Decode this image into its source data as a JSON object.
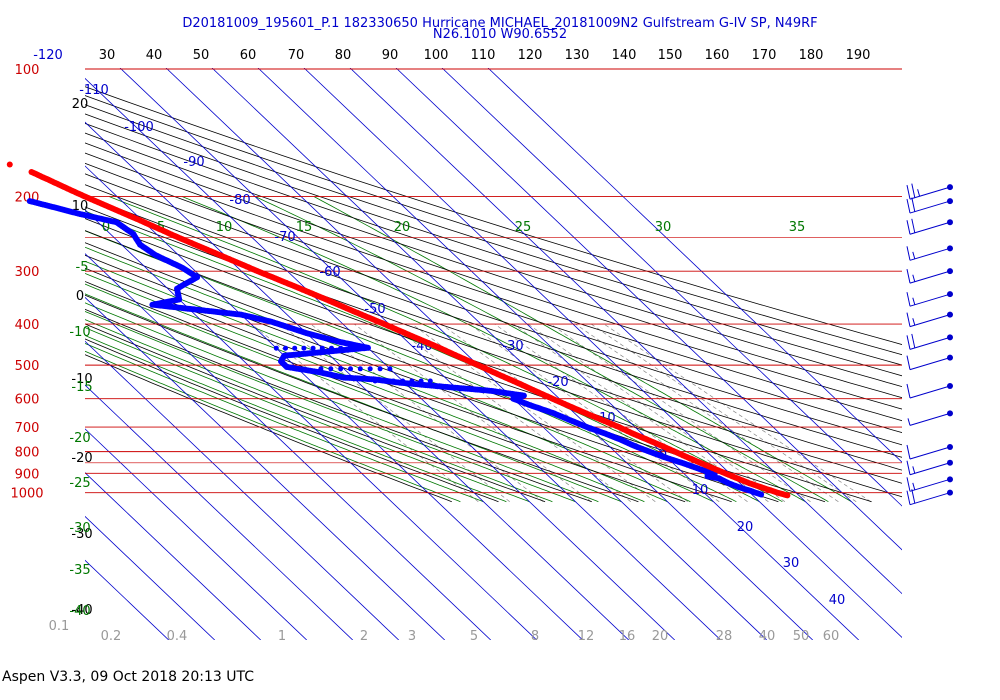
{
  "header": {
    "title_line1": "D20181009_195601_P.1 182330650 Hurricane MICHAEL_20181009N2 Gulfstream G-IV SP, N49RF",
    "title_line2": "N26.1010 W90.6552"
  },
  "footer": {
    "text": "Aspen V3.3, 09 Oct 2018  20:13 UTC"
  },
  "colors": {
    "isobar": "#cc0000",
    "isotherm": "#0000cc",
    "dry_adiabat": "#000000",
    "moist_adiabat": "#007700",
    "mixing_ratio": "#888888",
    "temperature": "#ff0000",
    "dewpoint": "#0000ff",
    "wind": "#0000cc"
  },
  "chart_data": {
    "type": "skew-t log-p",
    "pressure_axis": {
      "unit": "hPa",
      "scale": "log",
      "range": [
        100,
        1050
      ],
      "ticks": [
        "100",
        "200",
        "300",
        "400",
        "500",
        "600",
        "700",
        "800",
        "900",
        "1000"
      ]
    },
    "top_ticks": [
      "-120",
      "30",
      "40",
      "50",
      "60",
      "70",
      "80",
      "90",
      "100",
      "110",
      "120",
      "130",
      "140",
      "150",
      "160",
      "170",
      "180",
      "190"
    ],
    "isotherm_labels": [
      "-110",
      "-100",
      "-90",
      "-80",
      "-70",
      "-60",
      "-50",
      "-40",
      "-30",
      "-20",
      "-10",
      "0",
      "10",
      "20",
      "30",
      "40"
    ],
    "dry_adiabat_labels": [
      "20",
      "10",
      "0",
      "-10",
      "-20",
      "-30",
      "-40"
    ],
    "moist_adiabat_labels": [
      "0",
      "5",
      "10",
      "15",
      "20",
      "25",
      "30",
      "35",
      "-5",
      "-10",
      "-15",
      "-20",
      "-25",
      "-30",
      "-35",
      "-40"
    ],
    "mixing_ratio_labels": [
      "0.1",
      "0.2",
      "0.4",
      "1",
      "2",
      "3",
      "5",
      "8",
      "12",
      "16",
      "20",
      "28",
      "40",
      "50",
      "60"
    ],
    "temperature": {
      "name": "Temperature (°C)",
      "points": [
        {
          "p": 1015,
          "t": 27.5
        },
        {
          "p": 1000,
          "t": 26.0
        },
        {
          "p": 975,
          "t": 24.0
        },
        {
          "p": 950,
          "t": 22.0
        },
        {
          "p": 925,
          "t": 20.5
        },
        {
          "p": 900,
          "t": 19.0
        },
        {
          "p": 875,
          "t": 17.5
        },
        {
          "p": 850,
          "t": 16.0
        },
        {
          "p": 825,
          "t": 14.5
        },
        {
          "p": 800,
          "t": 13.0
        },
        {
          "p": 775,
          "t": 11.5
        },
        {
          "p": 750,
          "t": 9.8
        },
        {
          "p": 725,
          "t": 8.0
        },
        {
          "p": 700,
          "t": 6.5
        },
        {
          "p": 675,
          "t": 4.5
        },
        {
          "p": 650,
          "t": 2.5
        },
        {
          "p": 625,
          "t": 0.5
        },
        {
          "p": 600,
          "t": -1.5
        },
        {
          "p": 575,
          "t": -3.5
        },
        {
          "p": 550,
          "t": -5.5
        },
        {
          "p": 525,
          "t": -7.8
        },
        {
          "p": 500,
          "t": -10.0
        },
        {
          "p": 475,
          "t": -12.5
        },
        {
          "p": 450,
          "t": -15.0
        },
        {
          "p": 425,
          "t": -18.0
        },
        {
          "p": 400,
          "t": -21.0
        },
        {
          "p": 375,
          "t": -24.5
        },
        {
          "p": 350,
          "t": -28.0
        },
        {
          "p": 325,
          "t": -32.0
        },
        {
          "p": 300,
          "t": -36.5
        },
        {
          "p": 275,
          "t": -41.0
        },
        {
          "p": 250,
          "t": -46.0
        },
        {
          "p": 225,
          "t": -51.0
        },
        {
          "p": 210,
          "t": -54.5
        },
        {
          "p": 200,
          "t": -57.0
        },
        {
          "p": 185,
          "t": -60.5
        },
        {
          "p": 175,
          "t": -63.0
        }
      ],
      "isolated_point": {
        "p": 168,
        "t": -66.0
      }
    },
    "dewpoint": {
      "name": "Dewpoint (°C)",
      "points": [
        {
          "p": 1010,
          "t": 22.0
        },
        {
          "p": 990,
          "t": 20.5
        },
        {
          "p": 970,
          "t": 18.8
        },
        {
          "p": 950,
          "t": 17.5
        },
        {
          "p": 925,
          "t": 16.5
        },
        {
          "p": 915,
          "t": 14.5
        },
        {
          "p": 905,
          "t": 16.5
        },
        {
          "p": 880,
          "t": 14.5
        },
        {
          "p": 850,
          "t": 12.0
        },
        {
          "p": 825,
          "t": 9.5
        },
        {
          "p": 800,
          "t": 7.5
        },
        {
          "p": 775,
          "t": 5.5
        },
        {
          "p": 750,
          "t": 4.0
        },
        {
          "p": 725,
          "t": 2.0
        },
        {
          "p": 700,
          "t": -0.5
        },
        {
          "p": 675,
          "t": -2.5
        },
        {
          "p": 650,
          "t": -4.5
        },
        {
          "p": 620,
          "t": -8.0
        },
        {
          "p": 600,
          "t": -10.0
        },
        {
          "p": 590,
          "t": -7.0
        },
        {
          "p": 575,
          "t": -13.0
        },
        {
          "p": 560,
          "t": -24.0
        },
        {
          "p": 550,
          "t": -31.0
        },
        {
          "p": 540,
          "t": -36.0
        },
        {
          "p": 535,
          "t": -42.0
        },
        {
          "p": 520,
          "t": -46.0
        },
        {
          "p": 505,
          "t": -52.0
        },
        {
          "p": 490,
          "t": -52.0
        },
        {
          "p": 475,
          "t": -50.0
        },
        {
          "p": 455,
          "t": -30.0
        },
        {
          "p": 440,
          "t": -35.0
        },
        {
          "p": 420,
          "t": -40.0
        },
        {
          "p": 395,
          "t": -45.0
        },
        {
          "p": 380,
          "t": -50.0
        },
        {
          "p": 360,
          "t": -67.0
        },
        {
          "p": 350,
          "t": -60.0
        },
        {
          "p": 330,
          "t": -58.0
        },
        {
          "p": 310,
          "t": -51.0
        },
        {
          "p": 295,
          "t": -52.0
        },
        {
          "p": 275,
          "t": -55.0
        },
        {
          "p": 260,
          "t": -56.0
        },
        {
          "p": 245,
          "t": -55.0
        },
        {
          "p": 230,
          "t": -56.0
        },
        {
          "p": 220,
          "t": -62.0
        },
        {
          "p": 205,
          "t": -70.0
        }
      ],
      "dotted_segments": [
        {
          "p": 456,
          "t_from": -30.0,
          "t_to": -50.0
        },
        {
          "p": 510,
          "t_from": -45.0,
          "t_to": -30.0
        },
        {
          "p": 545,
          "t_from": -36.0,
          "t_to": -24.0
        }
      ]
    },
    "wind_barbs": [
      {
        "p": 190,
        "speed_kt": 25
      },
      {
        "p": 205,
        "speed_kt": 20
      },
      {
        "p": 230,
        "speed_kt": 20
      },
      {
        "p": 265,
        "speed_kt": 15
      },
      {
        "p": 300,
        "speed_kt": 15
      },
      {
        "p": 340,
        "speed_kt": 15
      },
      {
        "p": 380,
        "speed_kt": 15
      },
      {
        "p": 430,
        "speed_kt": 20
      },
      {
        "p": 480,
        "speed_kt": 10
      },
      {
        "p": 560,
        "speed_kt": 10
      },
      {
        "p": 650,
        "speed_kt": 5
      },
      {
        "p": 780,
        "speed_kt": 10
      },
      {
        "p": 850,
        "speed_kt": 15
      },
      {
        "p": 930,
        "speed_kt": 15
      },
      {
        "p": 1000,
        "speed_kt": 20
      }
    ]
  }
}
